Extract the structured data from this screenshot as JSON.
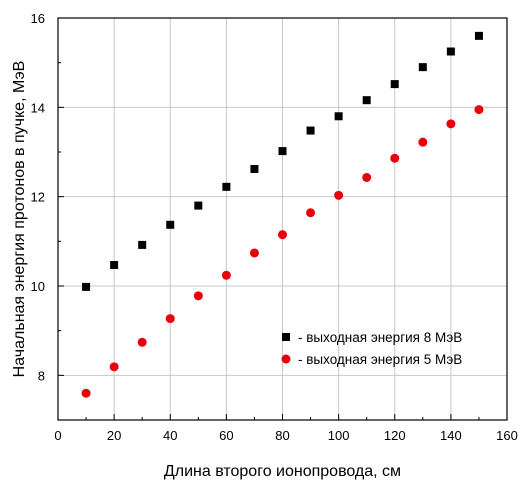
{
  "chart_data": {
    "type": "scatter",
    "title": "",
    "xlabel": "Длина второго ионопровода, см",
    "ylabel": "Начальная энергия протонов в пучке, МэВ",
    "xlim": [
      0,
      160
    ],
    "ylim": [
      7,
      16
    ],
    "xticks": [
      0,
      20,
      40,
      60,
      80,
      100,
      120,
      140,
      160
    ],
    "yticks": [
      8,
      10,
      12,
      14,
      16
    ],
    "grid": true,
    "legend_position": "bottom-right",
    "series": [
      {
        "name": "- выходная энергия 8 МэВ",
        "marker": "square",
        "color": "#000000",
        "x": [
          10,
          20,
          30,
          40,
          50,
          60,
          70,
          80,
          90,
          100,
          110,
          120,
          130,
          140,
          150
        ],
        "y": [
          9.98,
          10.47,
          10.92,
          11.37,
          11.8,
          12.22,
          12.62,
          13.02,
          13.48,
          13.8,
          14.16,
          14.52,
          14.9,
          15.25,
          15.6
        ]
      },
      {
        "name": "- выходная энергия 5 МэВ",
        "marker": "circle",
        "color": "#e8000b",
        "x": [
          10,
          20,
          30,
          40,
          50,
          60,
          70,
          80,
          90,
          100,
          110,
          120,
          130,
          140,
          150
        ],
        "y": [
          7.6,
          8.19,
          8.74,
          9.27,
          9.78,
          10.24,
          10.74,
          11.15,
          11.64,
          12.03,
          12.43,
          12.86,
          13.22,
          13.63,
          13.95
        ]
      }
    ]
  }
}
